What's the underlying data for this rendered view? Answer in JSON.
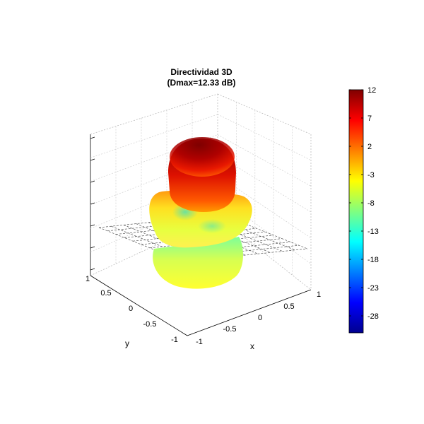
{
  "chart_data": {
    "type": "surface",
    "title": "Directividad 3D",
    "subtitle": "(Dmax=12.33 dB)",
    "dmax_db": 12.33,
    "xlabel": "x",
    "ylabel": "y",
    "zlabel": "",
    "x_ticks": [
      "-1",
      "-0.5",
      "0",
      "0.5",
      "1"
    ],
    "y_ticks": [
      "-1",
      "-0.5",
      "0",
      "0.5",
      "1"
    ],
    "xlim": [
      -1,
      1
    ],
    "ylim": [
      -1,
      1
    ],
    "grid": true,
    "colormap": "jet",
    "colorbar": {
      "position": "right",
      "limits": [
        -31,
        12
      ],
      "ticks": [
        "12",
        "7",
        "2",
        "-3",
        "-8",
        "-13",
        "-18",
        "-23",
        "-28"
      ]
    },
    "lobes": [
      {
        "name": "main-lobe",
        "level_db": 12
      },
      {
        "name": "side-lobe-ring",
        "level_db": -5
      },
      {
        "name": "lower-lobe",
        "level_db": -6
      }
    ]
  }
}
